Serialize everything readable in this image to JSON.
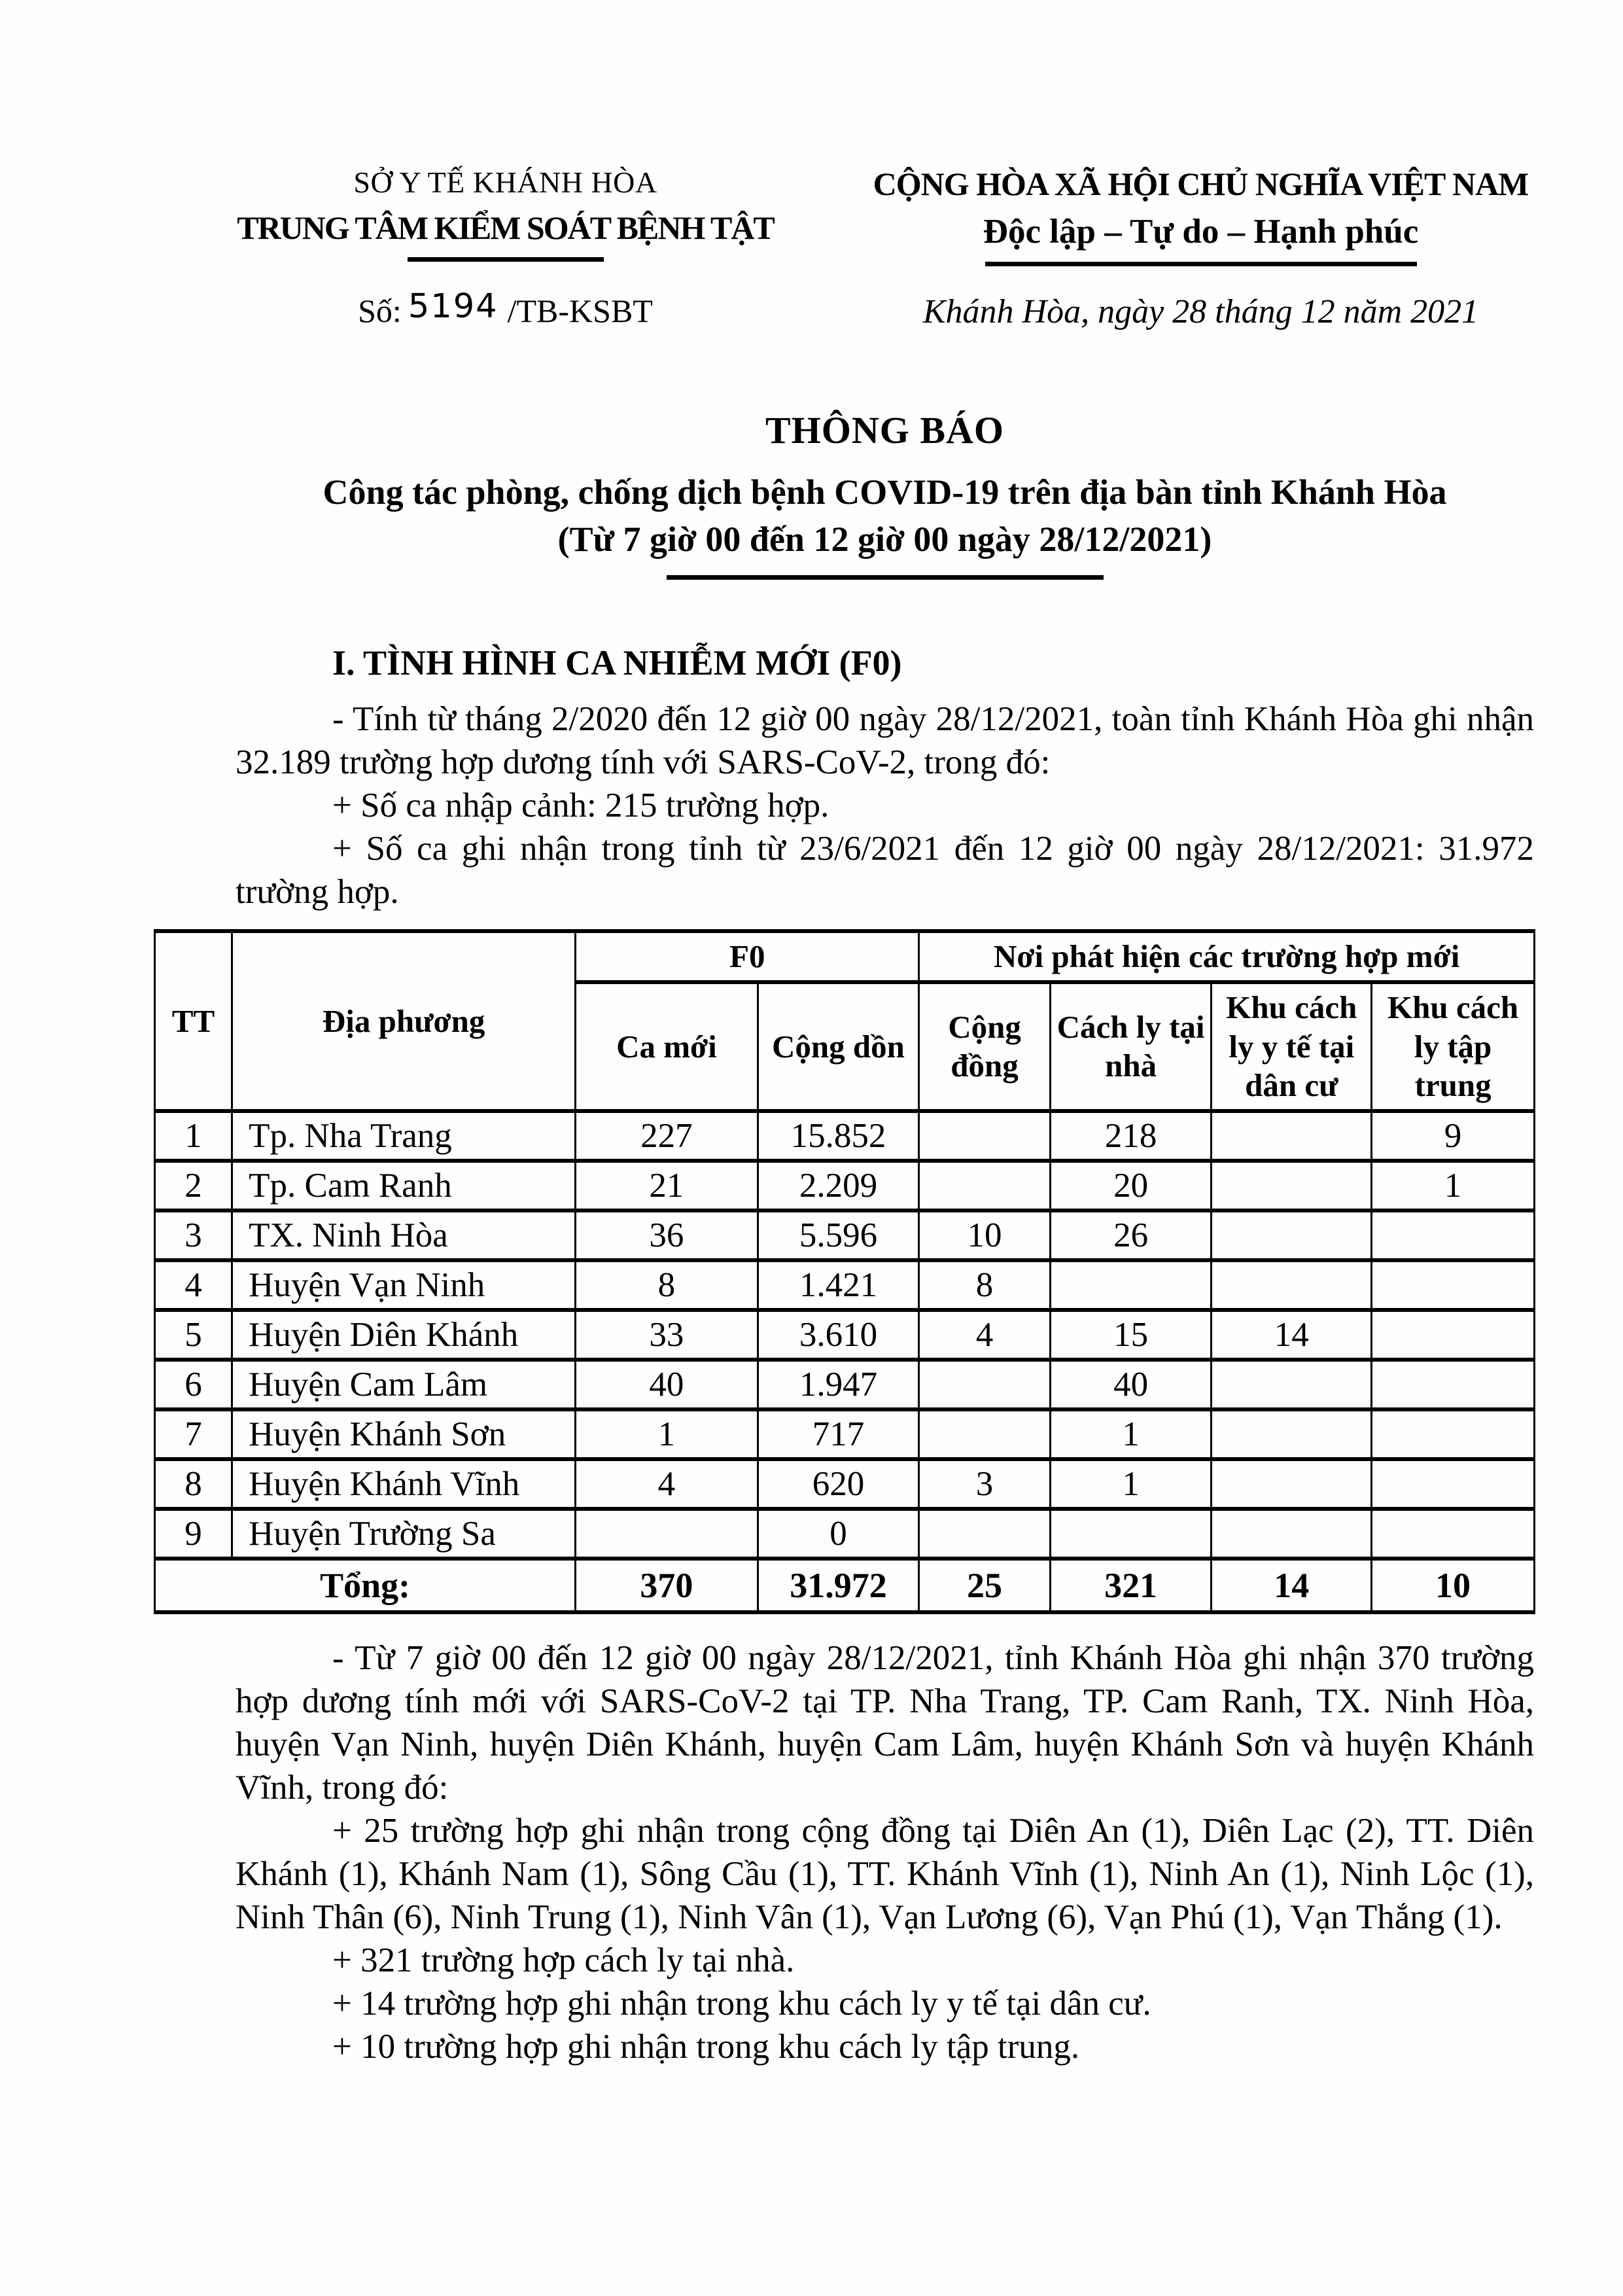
{
  "header": {
    "left": {
      "org_parent": "SỞ Y TẾ KHÁNH HÒA",
      "org_name": "TRUNG TÂM KIỂM SOÁT BỆNH TẬT",
      "doc_number_prefix": "Số:",
      "doc_number": "5194",
      "doc_number_suffix": "/TB-KSBT"
    },
    "right": {
      "national_title": "CỘNG HÒA XÃ HỘI CHỦ NGHĨA VIỆT NAM",
      "national_motto": "Độc lập – Tự do – Hạnh phúc",
      "place_date": "Khánh Hòa, ngày  28  tháng 12 năm 2021"
    }
  },
  "title": {
    "doc_type": "THÔNG BÁO",
    "subject": "Công tác phòng, chống dịch bệnh COVID-19 trên địa bàn tỉnh Khánh Hòa",
    "time_range": "(Từ 7 giờ 00 đến 12 giờ 00 ngày 28/12/2021)"
  },
  "section1": {
    "heading": "I. TÌNH HÌNH CA NHIỄM MỚI (F0)",
    "para_summary": "- Tính từ tháng 2/2020 đến 12 giờ 00 ngày 28/12/2021, toàn tỉnh Khánh Hòa ghi nhận 32.189 trường hợp dương tính với SARS-CoV-2, trong đó:",
    "para_imported": "+ Số ca nhập cảnh: 215 trường hợp.",
    "para_domestic": "+ Số ca ghi nhận trong tỉnh từ 23/6/2021 đến 12 giờ 00 ngày 28/12/2021: 31.972 trường hợp."
  },
  "table": {
    "headers": {
      "tt": "TT",
      "locality": "Địa phương",
      "f0_group": "F0",
      "f0_new": "Ca mới",
      "f0_cumulative": "Cộng dồn",
      "detect_group": "Nơi phát hiện các trường hợp mới",
      "community": "Cộng đồng",
      "home_quarantine": "Cách ly tại nhà",
      "medical_quarantine_residential": "Khu cách ly y tế tại dân cư",
      "centralized_quarantine": "Khu cách ly tập trung"
    },
    "rows": [
      {
        "tt": "1",
        "locality": "Tp. Nha Trang",
        "new_cases": "227",
        "cumulative": "15.852",
        "community": "",
        "home": "218",
        "medical": "",
        "centralized": "9"
      },
      {
        "tt": "2",
        "locality": "Tp. Cam Ranh",
        "new_cases": "21",
        "cumulative": "2.209",
        "community": "",
        "home": "20",
        "medical": "",
        "centralized": "1"
      },
      {
        "tt": "3",
        "locality": "TX. Ninh Hòa",
        "new_cases": "36",
        "cumulative": "5.596",
        "community": "10",
        "home": "26",
        "medical": "",
        "centralized": ""
      },
      {
        "tt": "4",
        "locality": "Huyện Vạn Ninh",
        "new_cases": "8",
        "cumulative": "1.421",
        "community": "8",
        "home": "",
        "medical": "",
        "centralized": ""
      },
      {
        "tt": "5",
        "locality": "Huyện Diên Khánh",
        "new_cases": "33",
        "cumulative": "3.610",
        "community": "4",
        "home": "15",
        "medical": "14",
        "centralized": ""
      },
      {
        "tt": "6",
        "locality": "Huyện Cam Lâm",
        "new_cases": "40",
        "cumulative": "1.947",
        "community": "",
        "home": "40",
        "medical": "",
        "centralized": ""
      },
      {
        "tt": "7",
        "locality": "Huyện Khánh Sơn",
        "new_cases": "1",
        "cumulative": "717",
        "community": "",
        "home": "1",
        "medical": "",
        "centralized": ""
      },
      {
        "tt": "8",
        "locality": "Huyện Khánh Vĩnh",
        "new_cases": "4",
        "cumulative": "620",
        "community": "3",
        "home": "1",
        "medical": "",
        "centralized": ""
      },
      {
        "tt": "9",
        "locality": "Huyện Trường Sa",
        "new_cases": "",
        "cumulative": "0",
        "community": "",
        "home": "",
        "medical": "",
        "centralized": ""
      }
    ],
    "total": {
      "label": "Tổng:",
      "new_cases": "370",
      "cumulative": "31.972",
      "community": "25",
      "home": "321",
      "medical": "14",
      "centralized": "10"
    }
  },
  "section2": {
    "para_period": "- Từ 7 giờ 00 đến 12 giờ 00 ngày 28/12/2021, tỉnh Khánh Hòa ghi nhận 370 trường hợp dương tính mới với SARS-CoV-2 tại TP. Nha Trang, TP. Cam Ranh, TX. Ninh Hòa, huyện Vạn Ninh, huyện Diên Khánh, huyện Cam Lâm, huyện Khánh Sơn và huyện Khánh Vĩnh, trong đó:",
    "para_community": "+ 25 trường hợp ghi nhận trong cộng đồng tại Diên An (1), Diên Lạc (2), TT. Diên Khánh (1), Khánh Nam (1), Sông Cầu (1), TT. Khánh Vĩnh (1), Ninh An (1), Ninh Lộc (1), Ninh Thân (6), Ninh Trung (1), Ninh Vân (1), Vạn Lương (6), Vạn Phú (1), Vạn Thắng (1).",
    "para_home": "+ 321 trường hợp cách ly tại nhà.",
    "para_medical": "+ 14 trường hợp ghi nhận trong khu cách ly y tế tại dân cư.",
    "para_centralized": "+ 10 trường hợp ghi nhận trong khu cách ly tập trung."
  }
}
